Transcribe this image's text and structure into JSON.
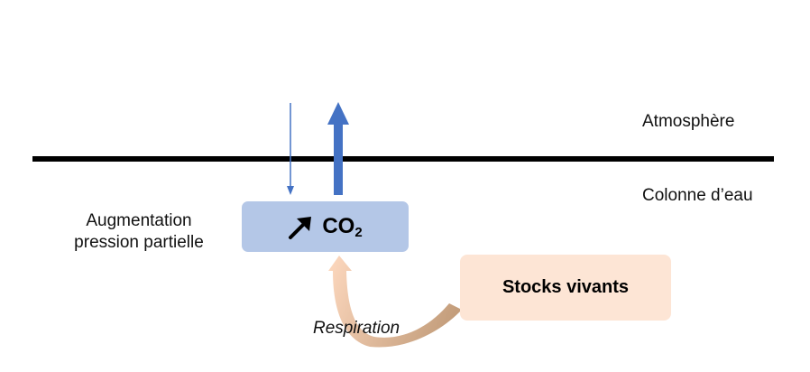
{
  "labels": {
    "atmosphere": "Atmosphère",
    "water_column": "Colonne d’eau",
    "augmentation_line1": "Augmentation",
    "augmentation_line2": "pression partielle",
    "co2_base": "CO",
    "co2_sub": "2",
    "stocks": "Stocks vivants",
    "respiration": "Respiration"
  },
  "icons": {
    "co2_trend": "arrow-up-right-icon",
    "flux_in": "thin-arrow-down-icon",
    "flux_out": "thick-arrow-up-icon",
    "respiration_flow": "curved-arrow-icon"
  },
  "colors": {
    "co2_box": "#b4c7e7",
    "stocks_box": "#fde5d5",
    "flux_arrows": "#4472c4",
    "respiration_dark": "#c8a888",
    "respiration_light": "#fbd6bd",
    "surface_line": "#000000"
  }
}
